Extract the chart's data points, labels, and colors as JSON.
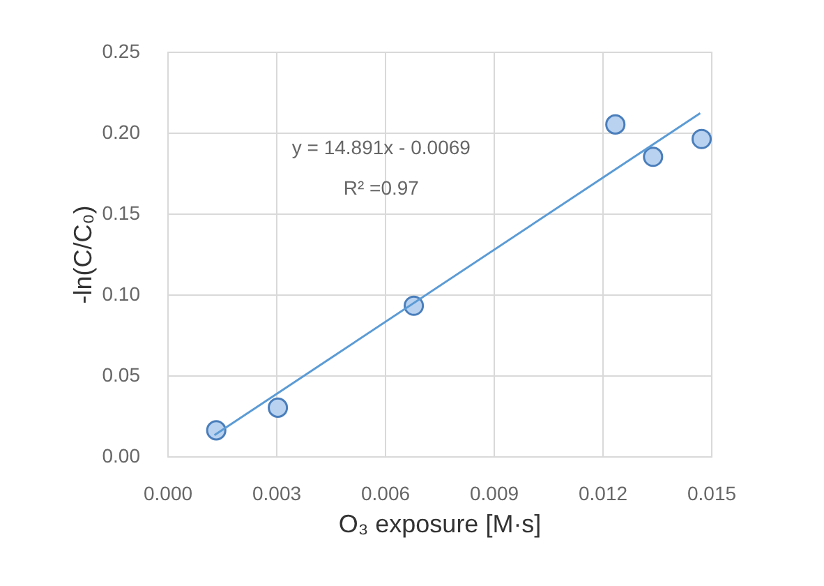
{
  "chart_data": {
    "type": "scatter",
    "xlabel": "O₃ exposure [M·s]",
    "ylabel": "-ln(C/C₀)",
    "series": [
      {
        "color": "#b8d2f0",
        "marker": "circle",
        "x": [
          0.00135,
          0.00305,
          0.0068,
          0.01236,
          0.0134,
          0.01474
        ],
        "values": [
          0.016,
          0.03,
          0.093,
          0.205,
          0.185,
          0.196
        ]
      },
      {
        "type": "line",
        "color": "#5b9bd5",
        "line_style": "solid",
        "x": [
          0.0013,
          0.0147
        ],
        "values": [
          0.013,
          0.212
        ]
      }
    ],
    "annotations": [
      "y = 14.891x - 0.0069",
      "R² =0.97"
    ],
    "xlim": [
      0.0,
      0.015
    ],
    "xticks": [
      {
        "value": 0.0,
        "label": "0.000"
      },
      {
        "value": 0.003,
        "label": "0.003"
      },
      {
        "value": 0.006,
        "label": "0.006"
      },
      {
        "value": 0.009,
        "label": "0.009"
      },
      {
        "value": 0.012,
        "label": "0.012"
      },
      {
        "value": 0.015,
        "label": "0.015"
      }
    ],
    "ylim": [
      0.0,
      0.25
    ],
    "yticks": [
      {
        "value": 0.0,
        "label": "0.00"
      },
      {
        "value": 0.05,
        "label": "0.05"
      },
      {
        "value": 0.1,
        "label": "0.10"
      },
      {
        "value": 0.15,
        "label": "0.15"
      },
      {
        "value": 0.2,
        "label": "0.20"
      },
      {
        "value": 0.25,
        "label": "0.25"
      }
    ],
    "grid": true
  }
}
